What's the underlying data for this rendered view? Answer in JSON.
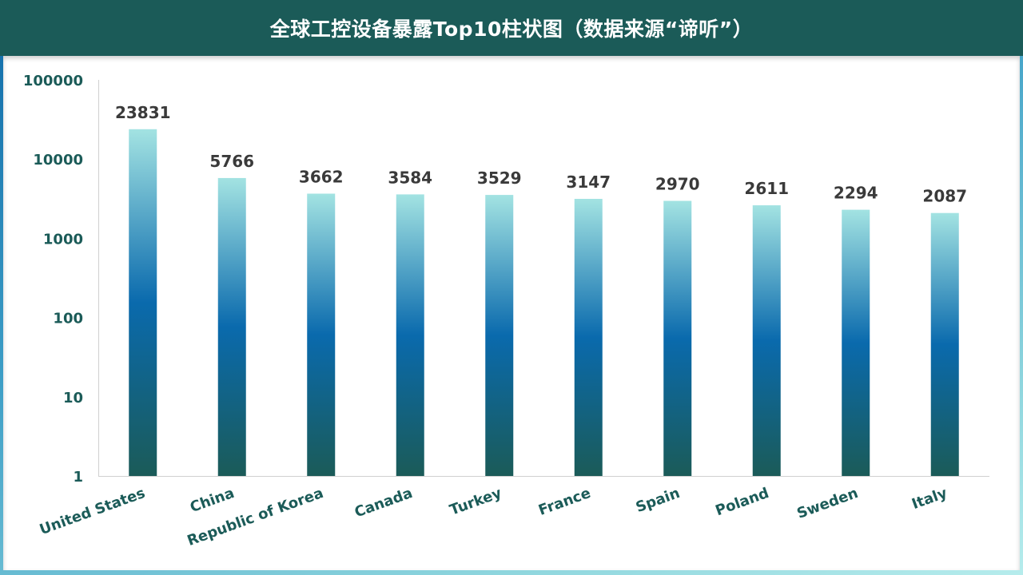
{
  "chart_data": {
    "type": "bar",
    "title": "全球工控设备暴露Top10柱状图（数据来源“谛听”）",
    "xlabel": "",
    "ylabel": "",
    "yscale": "log",
    "ylim": [
      1,
      100000
    ],
    "yticks": [
      "1",
      "10",
      "100",
      "1000",
      "10000",
      "100000"
    ],
    "categories": [
      "United States",
      "China",
      "Republic of Korea",
      "Canada",
      "Turkey",
      "France",
      "Spain",
      "Poland",
      "Sweden",
      "Italy"
    ],
    "values": [
      23831,
      5766,
      3662,
      3584,
      3529,
      3147,
      2970,
      2611,
      2294,
      2087
    ],
    "grid": false,
    "colors": {
      "header": "#1b5b58",
      "bar_top": "#a3e3e2",
      "bar_mid": "#0a6aad",
      "bar_bottom": "#1b5b58",
      "axis_text": "#1b5b58",
      "label_text": "#3a3a3a"
    }
  }
}
